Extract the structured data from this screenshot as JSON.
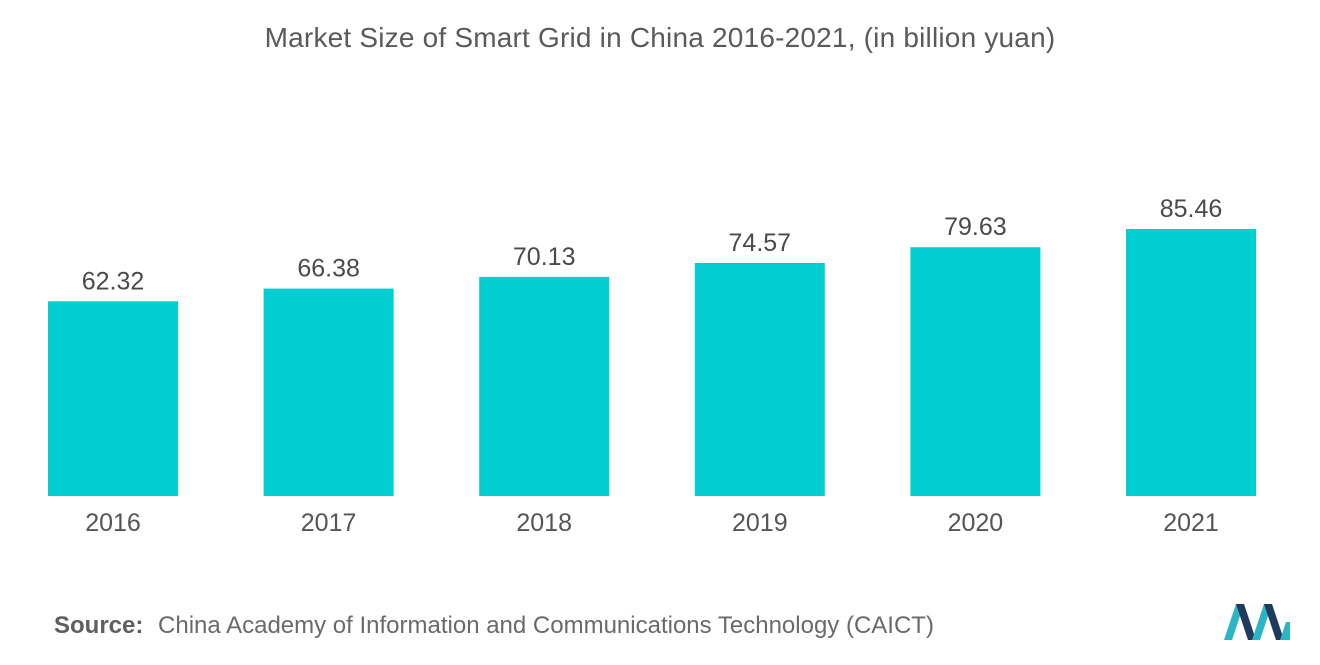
{
  "chart_data": {
    "type": "bar",
    "title": "Market Size of Smart Grid in China 2016-2021, (in billion yuan)",
    "categories": [
      "2016",
      "2017",
      "2018",
      "2019",
      "2020",
      "2021"
    ],
    "values": [
      62.32,
      66.38,
      70.13,
      74.57,
      79.63,
      85.46
    ],
    "value_labels": [
      "62.32",
      "66.38",
      "70.13",
      "74.57",
      "79.63",
      "85.46"
    ],
    "bar_color": "#00CED1",
    "xlabel": "",
    "ylabel": "",
    "ylim": [
      0,
      85.46
    ],
    "grid": false,
    "legend": "none"
  },
  "source": {
    "label": "Source:",
    "text": "China Academy of Information and Communications Technology (CAICT)"
  },
  "colors": {
    "logo_dark": "#1F3A5F",
    "logo_light": "#2BB5C5"
  },
  "logo": {
    "icon": "mordor-intelligence-logo-icon"
  }
}
